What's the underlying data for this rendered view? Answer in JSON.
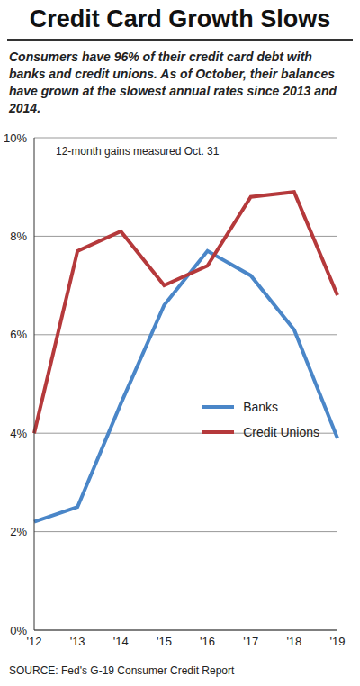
{
  "chart_data": {
    "type": "line",
    "title": "Credit Card Growth Slows",
    "subtitle": "Consumers have 96% of their credit card debt with banks and credit unions. As of October, their balances have grown at the slowest annual rates since 2013 and 2014.",
    "annotation": "12-month gains measured Oct. 31",
    "source": "SOURCE: Fed's G-19 Consumer Credit Report",
    "categories": [
      "'12",
      "'13",
      "'14",
      "'15",
      "'16",
      "'17",
      "'18",
      "'19"
    ],
    "series": [
      {
        "name": "Banks",
        "color": "#4a86c8",
        "values": [
          2.2,
          2.5,
          4.6,
          6.6,
          7.7,
          7.2,
          6.1,
          3.9
        ]
      },
      {
        "name": "Credit Unions",
        "color": "#b5393b",
        "values": [
          4.0,
          7.7,
          8.1,
          7.0,
          7.4,
          8.8,
          8.9,
          6.8
        ]
      }
    ],
    "ylim": [
      0,
      10
    ],
    "yticks": [
      {
        "value": 0,
        "label": "0%"
      },
      {
        "value": 2,
        "label": "2%"
      },
      {
        "value": 4,
        "label": "4%"
      },
      {
        "value": 6,
        "label": "6%"
      },
      {
        "value": 8,
        "label": "8%"
      },
      {
        "value": 10,
        "label": "10%"
      }
    ],
    "grid": true,
    "legend": "lower right"
  }
}
